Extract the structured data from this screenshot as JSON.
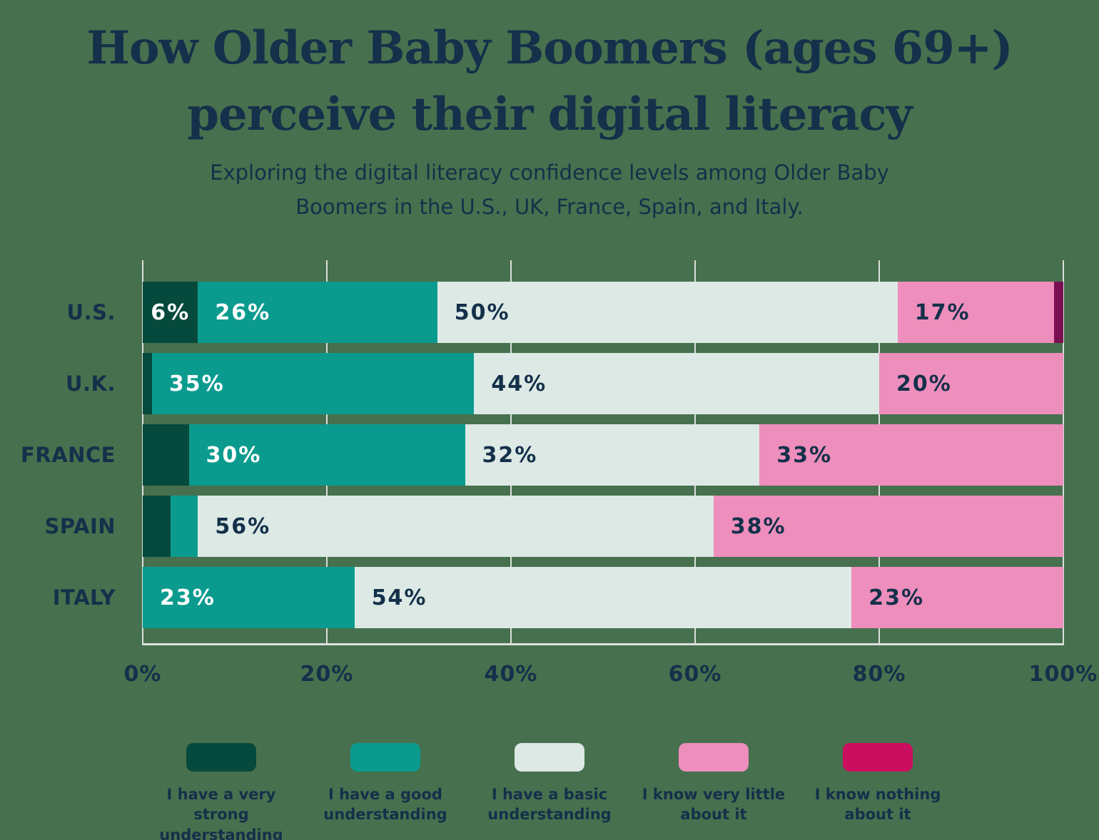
{
  "title_lines": [
    "How Older Baby Boomers (ages 69+)",
    "perceive their digital literacy"
  ],
  "subtitle_lines": [
    "Exploring the digital literacy confidence levels among Older Baby",
    "Boomers in the U.S., UK, France, Spain, and Italy."
  ],
  "colors": {
    "background": "#47704E",
    "text_navy": "#14304A",
    "gridline": "#D9E0DB",
    "label_on_dark": "#FFFFFF"
  },
  "chart_data": {
    "type": "bar",
    "orientation": "horizontal",
    "stacked": true,
    "unit": "%",
    "xlim": [
      0,
      100
    ],
    "x_ticks": [
      "0%",
      "20%",
      "40%",
      "60%",
      "80%",
      "100%"
    ],
    "grid": true,
    "legend_position": "bottom",
    "categories": [
      "U.S.",
      "U.K.",
      "FRANCE",
      "SPAIN",
      "ITALY"
    ],
    "series": [
      {
        "name": "I have a very strong understanding",
        "legend_lines": [
          "I have a very strong",
          "understanding"
        ],
        "color": "#054A3C",
        "legend_color": "#054A3C",
        "label_color": "#FFFFFF",
        "values": [
          6,
          1,
          5,
          3,
          0
        ],
        "labels": [
          "6%",
          null,
          null,
          null,
          null
        ]
      },
      {
        "name": "I have a good understanding",
        "legend_lines": [
          "I have a good",
          "understanding"
        ],
        "color": "#0A9B8E",
        "legend_color": "#0A9B8E",
        "label_color": "#FFFFFF",
        "values": [
          26,
          35,
          30,
          3,
          23
        ],
        "labels": [
          "26%",
          "35%",
          "30%",
          null,
          "23%"
        ]
      },
      {
        "name": "I have a basic understanding",
        "legend_lines": [
          "I have a basic",
          "understanding"
        ],
        "color": "#DCE9E5",
        "legend_color": "#DCE9E5",
        "label_color": "#14304A",
        "values": [
          50,
          44,
          32,
          56,
          54
        ],
        "labels": [
          "50%",
          "44%",
          "32%",
          "56%",
          "54%"
        ]
      },
      {
        "name": "I know very little about it",
        "legend_lines": [
          "I know very little",
          "about it"
        ],
        "color": "#EE8EBC",
        "legend_color": "#EE8EBC",
        "label_color": "#14304A",
        "values": [
          17,
          20,
          33,
          38,
          23
        ],
        "labels": [
          "17%",
          "20%",
          "33%",
          "38%",
          "23%"
        ]
      },
      {
        "name": "I know nothing about it",
        "legend_lines": [
          "I know nothing",
          "about it"
        ],
        "color": "#7A1052",
        "legend_color": "#CC0E5F",
        "label_color": "#FFFFFF",
        "values": [
          1,
          0,
          0,
          0,
          0
        ],
        "labels": [
          null,
          null,
          null,
          null,
          null
        ]
      }
    ]
  }
}
